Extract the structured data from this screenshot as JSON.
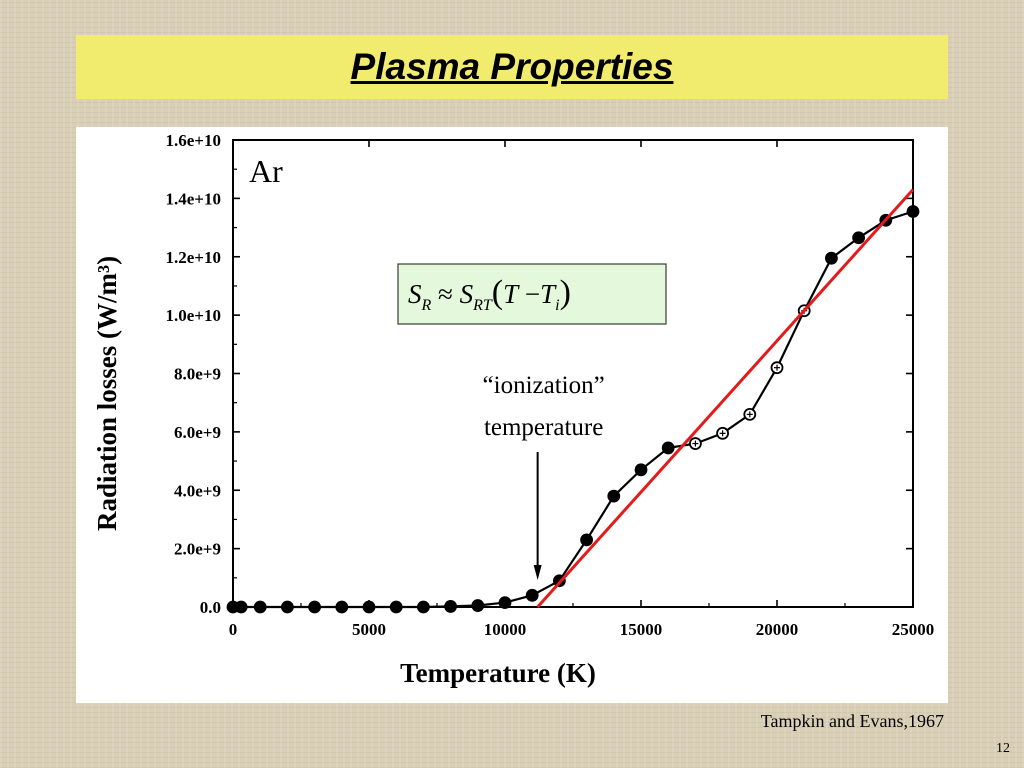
{
  "slide": {
    "title": "Plasma Properties",
    "citation": "Tampkin and Evans,1967",
    "page_number": "12"
  },
  "chart_data": {
    "type": "line",
    "title": "",
    "xlabel": "Temperature (K)",
    "ylabel": "Radiation losses (W/m³)",
    "xlim": [
      0,
      25000
    ],
    "ylim": [
      0,
      16000000000
    ],
    "xticks": [
      0,
      5000,
      10000,
      15000,
      20000,
      25000
    ],
    "xtick_labels": [
      "0",
      "5000",
      "10000",
      "15000",
      "20000",
      "25000"
    ],
    "yticks": [
      0,
      2000000000,
      4000000000,
      6000000000,
      8000000000,
      10000000000,
      12000000000,
      14000000000,
      16000000000
    ],
    "ytick_labels": [
      "0.0",
      "2.0e+9",
      "4.0e+9",
      "6.0e+9",
      "8.0e+9",
      "1.0e+10",
      "1.2e+10",
      "1.4e+10",
      "1.6e+10"
    ],
    "grid": false,
    "series": [
      {
        "color": "#000000",
        "marker": "circle",
        "x": [
          0,
          300,
          1000,
          2000,
          3000,
          4000,
          5000,
          6000,
          7000,
          8000,
          9000,
          10000,
          11000,
          12000,
          13000,
          14000,
          15000,
          16000,
          17000,
          18000,
          19000,
          20000,
          21000,
          22000,
          23000,
          24000,
          25000
        ],
        "y": [
          0,
          0,
          0,
          0,
          0,
          0,
          0,
          0,
          0,
          20000000,
          50000000,
          150000000,
          400000000,
          900000000,
          2300000000,
          3800000000,
          4700000000,
          5450000000,
          5600000000,
          5950000000,
          6600000000,
          8200000000,
          10150000000,
          11950000000,
          12650000000,
          13250000000,
          13550000000
        ],
        "open_markers_x": [
          17000,
          18000,
          19000,
          20000,
          21000
        ]
      },
      {
        "color": "#e31b1b",
        "marker": "none",
        "x": [
          11200,
          25000
        ],
        "y": [
          0,
          14300000000
        ]
      }
    ],
    "annotations": {
      "species": "Ar",
      "arrow_label_line1": "“ionization”",
      "arrow_label_line2": "temperature",
      "arrow_x": 11200,
      "formula": {
        "S": "S",
        "sub_R": "R",
        "approx": "≈",
        "sub_RT": "RT",
        "T": "T",
        "minus": "−",
        "sub_i": "i"
      }
    }
  }
}
